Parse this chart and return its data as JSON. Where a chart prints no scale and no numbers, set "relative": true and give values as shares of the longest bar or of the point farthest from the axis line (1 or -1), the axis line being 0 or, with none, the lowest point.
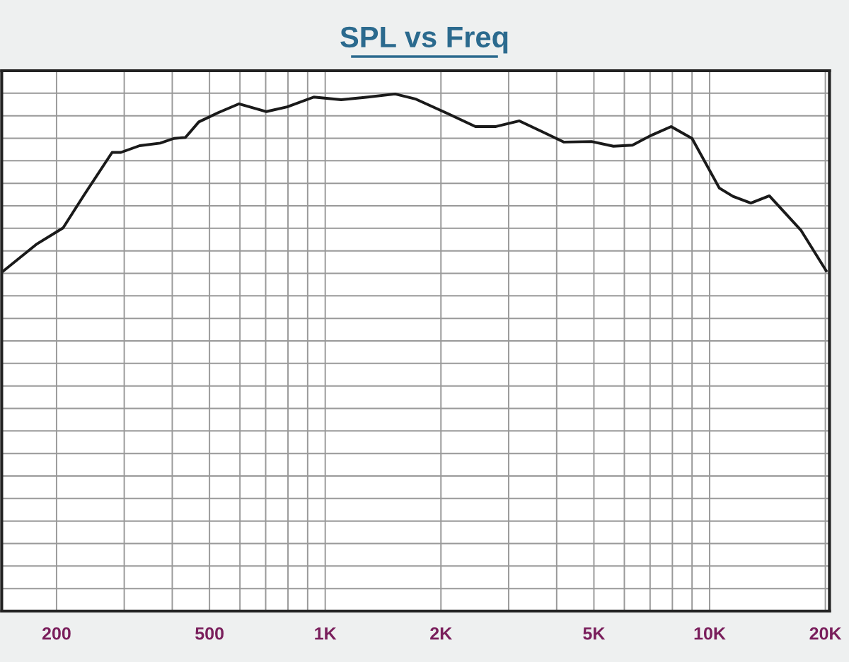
{
  "chart_data": {
    "type": "line",
    "title": "SPL vs Freq",
    "relative": true,
    "log": "x",
    "grid": true,
    "marker": "none",
    "line_style": "solid",
    "xlim": [
      144,
      20500
    ],
    "xticks": [
      200,
      500,
      {
        "value": 1000,
        "label": "1K"
      },
      {
        "value": 2000,
        "label": "2K"
      },
      {
        "value": 5000,
        "label": "5K"
      },
      {
        "value": 10000,
        "label": "10K"
      },
      {
        "value": 20000,
        "label": "20K"
      }
    ],
    "series": [
      {
        "color": "#1a1a1a",
        "x": [
          144,
          177,
          208,
          236,
          279,
          294,
          329,
          372,
          404,
          433,
          469,
          527,
          597,
          703,
          796,
          934,
          1100,
          1290,
          1520,
          1722,
          2086,
          2460,
          2780,
          3200,
          4180,
          4930,
          5620,
          6300,
          7000,
          7940,
          9000,
          10600,
          11500,
          12800,
          14300,
          17300,
          20100
        ],
        "values": [
          0.655,
          0.709,
          0.741,
          0.805,
          0.887,
          0.887,
          0.9,
          0.905,
          0.914,
          0.916,
          0.946,
          0.964,
          0.981,
          0.966,
          0.975,
          0.994,
          0.989,
          0.994,
          1,
          0.99,
          0.962,
          0.937,
          0.937,
          0.948,
          0.907,
          0.908,
          0.899,
          0.901,
          0.919,
          0.937,
          0.914,
          0.818,
          0.802,
          0.789,
          0.803,
          0.736,
          0.658
        ]
      }
    ]
  }
}
